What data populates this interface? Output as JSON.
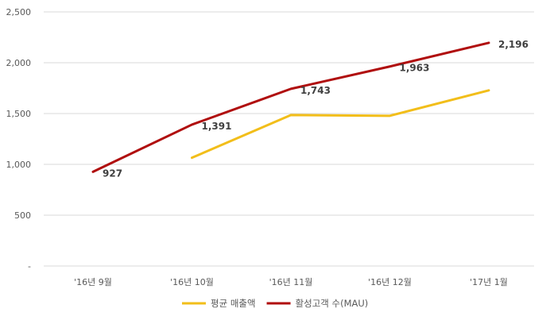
{
  "chart_data": {
    "type": "line",
    "categories": [
      "'16년 9월",
      "'16년 10월",
      "'16년 11월",
      "'16년 12월",
      "'17년 1월"
    ],
    "series": [
      {
        "name": "평균 매출액",
        "color": "#F2BE1A",
        "values": [
          null,
          1065,
          1485,
          1478,
          1728
        ],
        "labels": [
          null,
          null,
          null,
          null,
          null
        ]
      },
      {
        "name": "활성고객 수(MAU)",
        "color": "#B00E0E",
        "values": [
          927,
          1391,
          1743,
          1963,
          2196
        ],
        "labels": [
          "927",
          "1,391",
          "1,743",
          "1,963",
          "2,196"
        ]
      }
    ],
    "ylim": [
      0,
      2500
    ],
    "yticks": [
      0,
      500,
      1000,
      1500,
      2000,
      2500
    ],
    "ytick_labels": [
      "-",
      "500",
      "1,000",
      "1,500",
      "2,000",
      "2,500"
    ],
    "grid": true,
    "legend_position": "bottom"
  }
}
